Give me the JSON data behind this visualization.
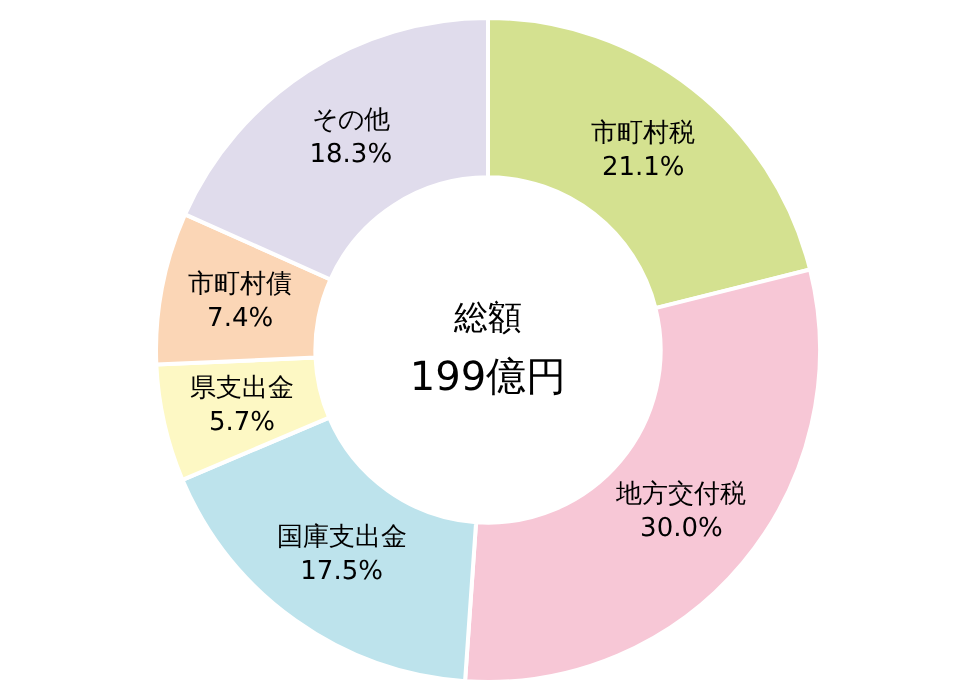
{
  "chart_data": {
    "type": "donut",
    "categories": [
      "市町村税",
      "地方交付税",
      "国庫支出金",
      "県支出金",
      "市町村債",
      "その他"
    ],
    "values": [
      21.1,
      30.0,
      17.5,
      5.7,
      7.4,
      18.3
    ],
    "value_labels": [
      "21.1%",
      "30.0%",
      "17.5%",
      "5.7%",
      "7.4%",
      "18.3%"
    ],
    "colors": [
      "#d4e190",
      "#f7c7d6",
      "#bde3ec",
      "#fdf8c4",
      "#fbd6b6",
      "#e0dcec"
    ],
    "annotations": [
      "総額",
      "199億円"
    ],
    "legend": false
  }
}
